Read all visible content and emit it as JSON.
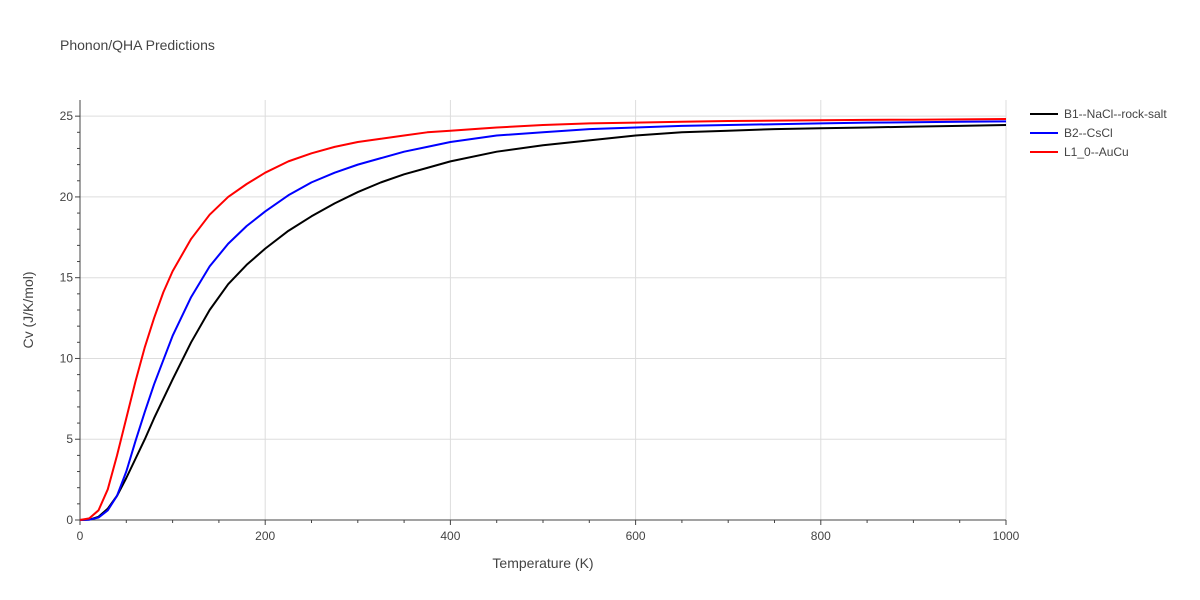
{
  "chart_data": {
    "type": "line",
    "title": "Phonon/QHA Predictions",
    "xlabel": "Temperature (K)",
    "ylabel": "Cv (J/K/mol)",
    "xlim": [
      0,
      1000
    ],
    "ylim": [
      0,
      26
    ],
    "x_ticks": [
      0,
      200,
      400,
      600,
      800,
      1000
    ],
    "y_ticks": [
      0,
      5,
      10,
      15,
      20,
      25
    ],
    "grid": true,
    "legend_position": "top-right outside",
    "series": [
      {
        "name": "B1--NaCl--rock-salt",
        "color": "#000000",
        "x": [
          0,
          10,
          20,
          30,
          40,
          50,
          60,
          70,
          80,
          90,
          100,
          120,
          140,
          160,
          180,
          200,
          225,
          250,
          275,
          300,
          325,
          350,
          375,
          400,
          450,
          500,
          550,
          600,
          650,
          700,
          750,
          800,
          850,
          900,
          950,
          1000
        ],
        "y": [
          0,
          0.02,
          0.2,
          0.7,
          1.5,
          2.6,
          3.8,
          5.0,
          6.3,
          7.5,
          8.7,
          11.0,
          13.0,
          14.6,
          15.8,
          16.8,
          17.9,
          18.8,
          19.6,
          20.3,
          20.9,
          21.4,
          21.8,
          22.2,
          22.8,
          23.2,
          23.5,
          23.8,
          24.0,
          24.1,
          24.2,
          24.25,
          24.3,
          24.35,
          24.4,
          24.45
        ]
      },
      {
        "name": "B2--CsCl",
        "color": "#0000ff",
        "x": [
          0,
          10,
          20,
          30,
          40,
          50,
          60,
          70,
          80,
          90,
          100,
          120,
          140,
          160,
          180,
          200,
          225,
          250,
          275,
          300,
          325,
          350,
          375,
          400,
          450,
          500,
          550,
          600,
          650,
          700,
          750,
          800,
          850,
          900,
          950,
          1000
        ],
        "y": [
          0,
          0.02,
          0.15,
          0.6,
          1.5,
          3.0,
          4.9,
          6.7,
          8.4,
          9.9,
          11.4,
          13.8,
          15.7,
          17.1,
          18.2,
          19.1,
          20.1,
          20.9,
          21.5,
          22.0,
          22.4,
          22.8,
          23.1,
          23.4,
          23.8,
          24.0,
          24.2,
          24.3,
          24.4,
          24.45,
          24.5,
          24.55,
          24.6,
          24.62,
          24.65,
          24.68
        ]
      },
      {
        "name": "L1_0--AuCu",
        "color": "#ff0000",
        "x": [
          0,
          10,
          20,
          30,
          40,
          50,
          60,
          70,
          80,
          90,
          100,
          120,
          140,
          160,
          180,
          200,
          225,
          250,
          275,
          300,
          325,
          350,
          375,
          400,
          450,
          500,
          550,
          600,
          650,
          700,
          750,
          800,
          850,
          900,
          950,
          1000
        ],
        "y": [
          0,
          0.1,
          0.6,
          1.9,
          4.0,
          6.3,
          8.6,
          10.7,
          12.5,
          14.1,
          15.4,
          17.4,
          18.9,
          20.0,
          20.8,
          21.5,
          22.2,
          22.7,
          23.1,
          23.4,
          23.6,
          23.8,
          24.0,
          24.1,
          24.3,
          24.45,
          24.55,
          24.6,
          24.65,
          24.7,
          24.72,
          24.75,
          24.77,
          24.78,
          24.8,
          24.82
        ]
      }
    ]
  }
}
